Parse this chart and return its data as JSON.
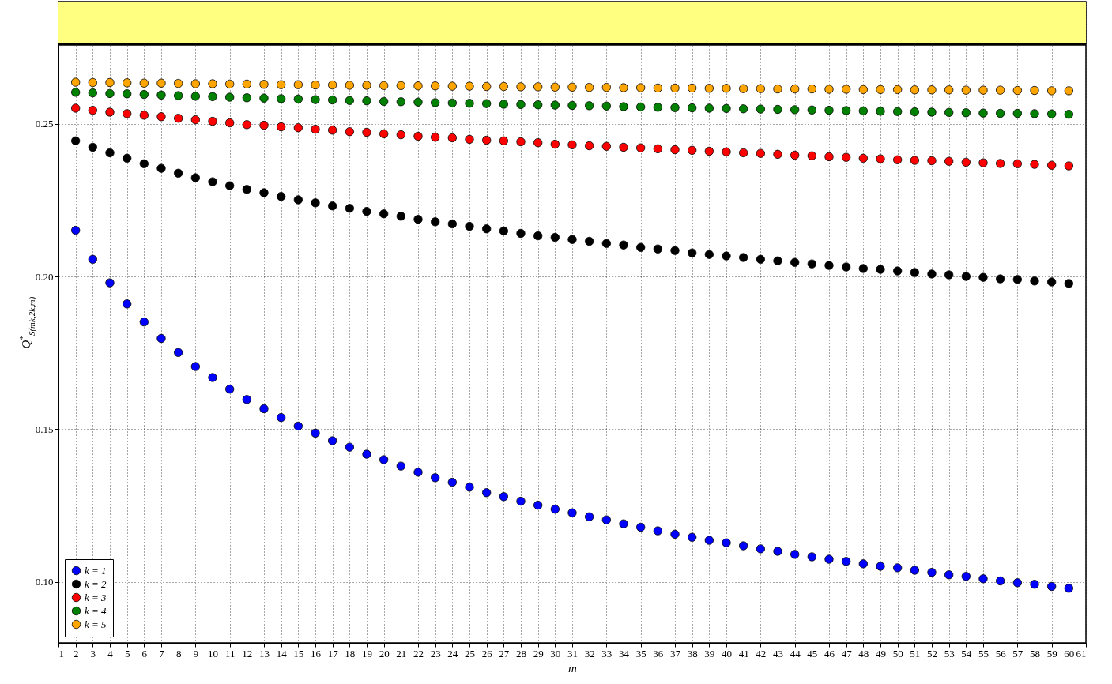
{
  "chart_data": {
    "type": "scatter",
    "xlabel": "m",
    "ylabel": "Q$^{*}$$_{S(mk,2k,m)}$",
    "x": [
      2,
      3,
      4,
      5,
      6,
      7,
      8,
      9,
      10,
      11,
      12,
      13,
      14,
      15,
      16,
      17,
      18,
      19,
      20,
      21,
      22,
      23,
      24,
      25,
      26,
      27,
      28,
      29,
      30,
      31,
      32,
      33,
      34,
      35,
      36,
      37,
      38,
      39,
      40,
      41,
      42,
      43,
      44,
      45,
      46,
      47,
      48,
      49,
      50,
      51,
      52,
      53,
      54,
      55,
      56,
      57,
      58,
      59,
      60
    ],
    "series": [
      {
        "name": "k = 1",
        "color": "#0000ff",
        "values": [
          0.2151,
          0.2056,
          0.1979,
          0.191,
          0.1851,
          0.1797,
          0.1751,
          0.1705,
          0.1669,
          0.1631,
          0.1597,
          0.1567,
          0.1538,
          0.151,
          0.1487,
          0.1462,
          0.1441,
          0.1418,
          0.14,
          0.1379,
          0.1359,
          0.1341,
          0.1326,
          0.131,
          0.1292,
          0.1279,
          0.1264,
          0.1251,
          0.1238,
          0.1226,
          0.1213,
          0.1203,
          0.119,
          0.1179,
          0.1167,
          0.1156,
          0.1146,
          0.1136,
          0.1128,
          0.1118,
          0.1108,
          0.11,
          0.109,
          0.1082,
          0.1074,
          0.1067,
          0.1059,
          0.1051,
          0.1046,
          0.1038,
          0.1031,
          0.1023,
          0.1018,
          0.101,
          0.1003,
          0.0997,
          0.0992,
          0.0985,
          0.0979
        ]
      },
      {
        "name": "k = 2",
        "color": "#000000",
        "values": [
          0.2444,
          0.2423,
          0.2405,
          0.2387,
          0.2369,
          0.2354,
          0.2338,
          0.2323,
          0.231,
          0.2297,
          0.2285,
          0.2274,
          0.2262,
          0.2251,
          0.2241,
          0.2231,
          0.2223,
          0.2213,
          0.2205,
          0.2197,
          0.2187,
          0.2179,
          0.2172,
          0.2164,
          0.2156,
          0.2149,
          0.2141,
          0.2133,
          0.2128,
          0.2121,
          0.2115,
          0.2108,
          0.2103,
          0.2095,
          0.209,
          0.2085,
          0.2077,
          0.2072,
          0.2067,
          0.2062,
          0.2056,
          0.2051,
          0.2046,
          0.2041,
          0.2036,
          0.2031,
          0.2026,
          0.2023,
          0.2018,
          0.2013,
          0.2008,
          0.2005,
          0.2,
          0.1997,
          0.1992,
          0.199,
          0.1985,
          0.1982,
          0.1977
        ]
      },
      {
        "name": "k = 3",
        "color": "#ff0000",
        "values": [
          0.2551,
          0.2544,
          0.2538,
          0.2533,
          0.2528,
          0.2523,
          0.2518,
          0.2513,
          0.2508,
          0.2503,
          0.2497,
          0.2495,
          0.249,
          0.2487,
          0.2482,
          0.2479,
          0.2474,
          0.2472,
          0.2467,
          0.2464,
          0.2459,
          0.2456,
          0.2454,
          0.2449,
          0.2446,
          0.2444,
          0.2441,
          0.2438,
          0.2433,
          0.2431,
          0.2428,
          0.2426,
          0.2423,
          0.2421,
          0.2418,
          0.2415,
          0.2413,
          0.241,
          0.2408,
          0.2405,
          0.2403,
          0.24,
          0.2397,
          0.2395,
          0.2392,
          0.239,
          0.2387,
          0.2385,
          0.2382,
          0.238,
          0.2379,
          0.2377,
          0.2374,
          0.2372,
          0.237,
          0.2369,
          0.2367,
          0.2364,
          0.2362
        ]
      },
      {
        "name": "k = 4",
        "color": "#008000",
        "values": [
          0.2603,
          0.2601,
          0.2599,
          0.2598,
          0.2596,
          0.2594,
          0.2592,
          0.259,
          0.2589,
          0.2587,
          0.2585,
          0.2584,
          0.2582,
          0.2581,
          0.2579,
          0.2578,
          0.2576,
          0.2575,
          0.2573,
          0.2572,
          0.2571,
          0.2569,
          0.2568,
          0.2567,
          0.2566,
          0.2564,
          0.2563,
          0.2562,
          0.2561,
          0.256,
          0.2559,
          0.2558,
          0.2556,
          0.2555,
          0.2554,
          0.2553,
          0.2552,
          0.2551,
          0.255,
          0.2549,
          0.2548,
          0.2547,
          0.2546,
          0.2545,
          0.2544,
          0.2543,
          0.2542,
          0.2541,
          0.254,
          0.2539,
          0.2538,
          0.2537,
          0.2536,
          0.2535,
          0.2534,
          0.2534,
          0.2533,
          0.2532,
          0.2531
        ]
      },
      {
        "name": "k = 5",
        "color": "#ffa500",
        "values": [
          0.2636,
          0.2635,
          0.2635,
          0.2634,
          0.2633,
          0.2633,
          0.2632,
          0.2631,
          0.2631,
          0.263,
          0.263,
          0.2629,
          0.2628,
          0.2628,
          0.2627,
          0.2627,
          0.2626,
          0.2626,
          0.2625,
          0.2625,
          0.2624,
          0.2624,
          0.2623,
          0.2623,
          0.2622,
          0.2622,
          0.2621,
          0.2621,
          0.262,
          0.262,
          0.2619,
          0.2619,
          0.2618,
          0.2618,
          0.2617,
          0.2617,
          0.2617,
          0.2616,
          0.2616,
          0.2615,
          0.2615,
          0.2614,
          0.2614,
          0.2614,
          0.2613,
          0.2613,
          0.2612,
          0.2612,
          0.2612,
          0.2611,
          0.2611,
          0.2611,
          0.261,
          0.261,
          0.261,
          0.2609,
          0.2609,
          0.2608,
          0.2608
        ]
      }
    ],
    "xlim": [
      1,
      61
    ],
    "xticks": [
      1,
      2,
      3,
      4,
      5,
      6,
      7,
      8,
      9,
      10,
      11,
      12,
      13,
      14,
      15,
      16,
      17,
      18,
      19,
      20,
      21,
      22,
      23,
      24,
      25,
      26,
      27,
      28,
      29,
      30,
      31,
      32,
      33,
      34,
      35,
      36,
      37,
      38,
      39,
      40,
      41,
      42,
      43,
      44,
      45,
      46,
      47,
      48,
      49,
      50,
      51,
      52,
      53,
      54,
      55,
      56,
      57,
      58,
      59,
      60,
      61
    ],
    "ylim": [
      0.08,
      0.29
    ],
    "yticks": [
      {
        "value": 0.1,
        "label": "0.10"
      },
      {
        "value": 0.15,
        "label": "0.15"
      },
      {
        "value": 0.2,
        "label": "0.20"
      },
      {
        "value": 0.25,
        "label": "0.25"
      }
    ],
    "bands": [
      {
        "axis": "y",
        "from": 0.276,
        "to": 0.29,
        "color": "#ffff80"
      }
    ],
    "ref_lines": [
      {
        "axis": "y",
        "value": 0.276,
        "color": "#000000"
      }
    ],
    "grid": true,
    "legend": "bottom left",
    "marker": "circle"
  }
}
